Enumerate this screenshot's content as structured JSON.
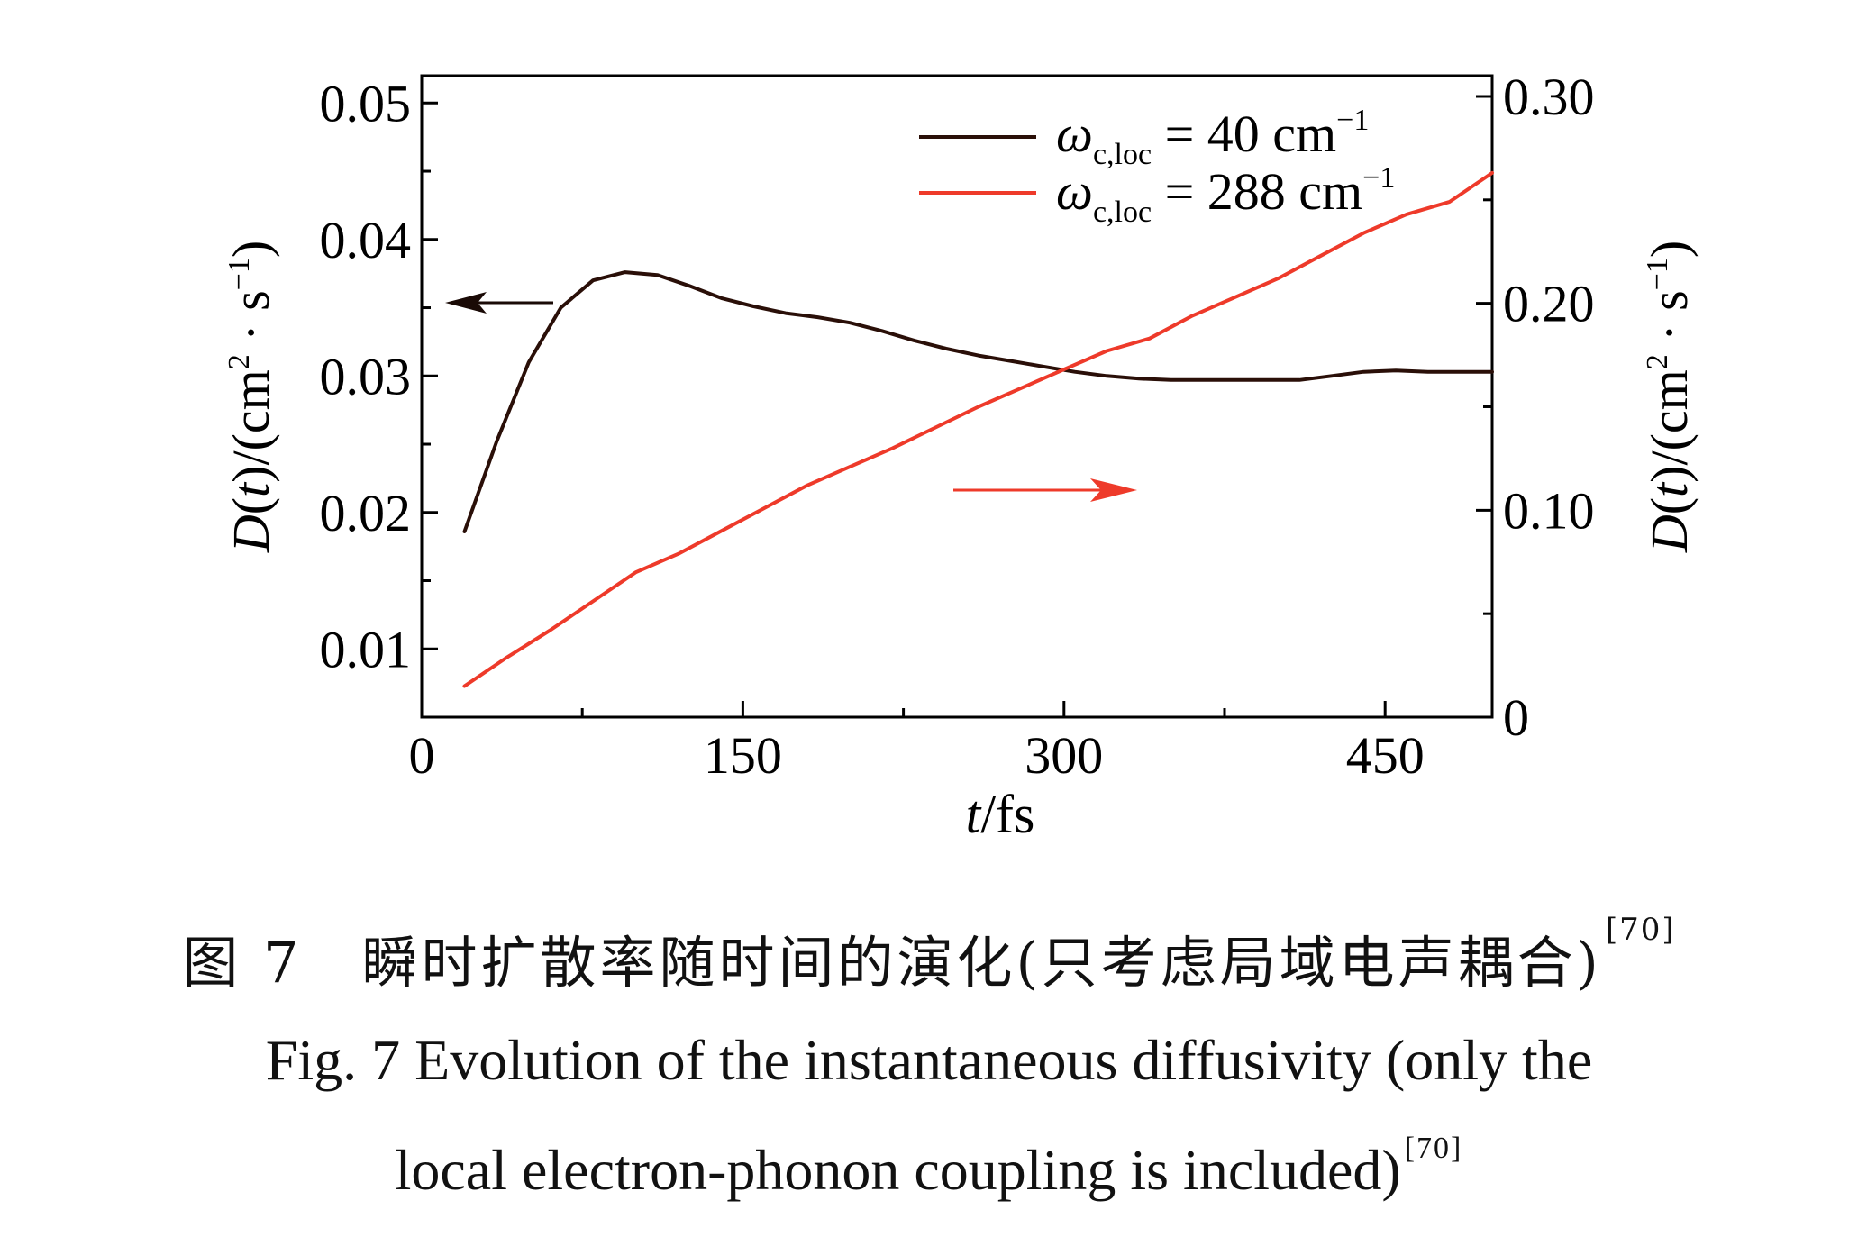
{
  "chart_data": {
    "type": "line",
    "x_axis": {
      "label_italic": "t",
      "label_unit": "/fs",
      "range": [
        0,
        500
      ],
      "ticks": [
        0,
        150,
        300,
        450
      ],
      "tick_labels": [
        "0",
        "150",
        "300",
        "450"
      ],
      "minor_ticks": [
        75,
        225,
        375
      ]
    },
    "y_axis_left": {
      "label_pre": "D(",
      "label_var": "t",
      "label_post": ")/(cm",
      "label_sup1": "2",
      "label_mid": " · s",
      "label_sup2": "−1",
      "label_end": ")",
      "range": [
        0.005,
        0.052
      ],
      "ticks": [
        0.01,
        0.02,
        0.03,
        0.04,
        0.05
      ],
      "tick_labels": [
        "0.01",
        "0.02",
        "0.03",
        "0.04",
        "0.05"
      ]
    },
    "y_axis_right": {
      "label_pre": "D(",
      "label_var": "t",
      "label_post": ")/(cm",
      "label_sup1": "2",
      "label_mid": " · s",
      "label_sup2": "−1",
      "label_end": ")",
      "range": [
        0,
        0.31
      ],
      "ticks": [
        0,
        0.1,
        0.2,
        0.3
      ],
      "tick_labels": [
        "0",
        "0.10",
        "0.20",
        "0.30"
      ]
    },
    "series": [
      {
        "name": "ωc,loc = 40 cm−1",
        "legend_symbol": "ω",
        "legend_sub": "c,loc",
        "legend_value": " = 40 cm",
        "legend_sup": "−1",
        "axis": "left",
        "color": "#2a0f08",
        "x": [
          20,
          35,
          50,
          65,
          80,
          95,
          110,
          125,
          140,
          155,
          170,
          185,
          200,
          215,
          230,
          245,
          260,
          275,
          290,
          305,
          320,
          335,
          350,
          365,
          380,
          395,
          410,
          425,
          440,
          455,
          470,
          485,
          500
        ],
        "y": [
          0.0186,
          0.0252,
          0.031,
          0.035,
          0.037,
          0.0376,
          0.0374,
          0.0366,
          0.0357,
          0.0351,
          0.0346,
          0.0343,
          0.0339,
          0.0333,
          0.0326,
          0.032,
          0.0315,
          0.0311,
          0.0307,
          0.0303,
          0.03,
          0.0298,
          0.0297,
          0.0297,
          0.0297,
          0.0297,
          0.0297,
          0.03,
          0.0303,
          0.0304,
          0.0303,
          0.0303,
          0.0303
        ]
      },
      {
        "name": "ωc,loc = 288 cm−1",
        "legend_symbol": "ω",
        "legend_sub": "c,loc",
        "legend_value": " = 288 cm",
        "legend_sup": "−1",
        "axis": "right",
        "color": "#ee3a2a",
        "x": [
          20,
          40,
          60,
          80,
          100,
          120,
          140,
          160,
          180,
          200,
          220,
          240,
          260,
          280,
          300,
          320,
          340,
          360,
          380,
          400,
          420,
          440,
          460,
          480,
          500
        ],
        "y": [
          0.015,
          0.029,
          0.042,
          0.056,
          0.07,
          0.079,
          0.09,
          0.101,
          0.112,
          0.121,
          0.13,
          0.14,
          0.15,
          0.159,
          0.168,
          0.177,
          0.183,
          0.194,
          0.203,
          0.212,
          0.223,
          0.234,
          0.243,
          0.249,
          0.263
        ]
      }
    ],
    "legend_position": "top-right",
    "grid": false
  },
  "caption": {
    "zh_main": "图 7　瞬时扩散率随时间的演化(只考虑局域电声耦合)",
    "zh_ref": "[70]",
    "en_line1": "Fig. 7  Evolution of the instantaneous diffusivity (only the",
    "en_line2": "local electron-phonon coupling is included)",
    "en_ref": "[70]"
  },
  "colors": {
    "left_series": "#2a0f08",
    "right_series": "#ee3a2a",
    "axis": "#000000"
  }
}
